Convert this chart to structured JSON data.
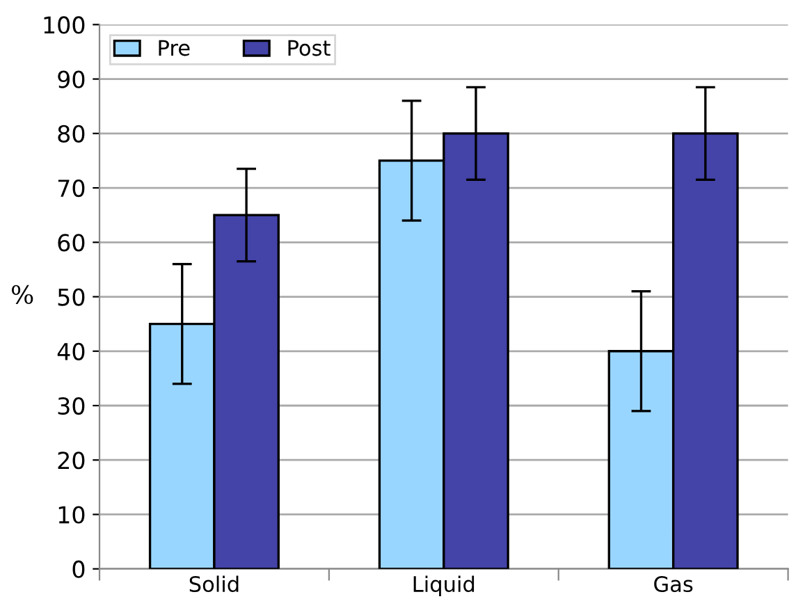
{
  "chart_data": {
    "type": "bar",
    "ylabel": "%",
    "categories": [
      "Solid",
      "Liquid",
      "Gas"
    ],
    "series": [
      {
        "name": "Pre",
        "color": "#99d6ff",
        "values": [
          45,
          75,
          40
        ],
        "errors": [
          11,
          11,
          11
        ]
      },
      {
        "name": "Post",
        "color": "#4343a8",
        "values": [
          65,
          80,
          80
        ],
        "errors": [
          8.5,
          8.5,
          8.5
        ]
      }
    ],
    "ylim": [
      0,
      100
    ],
    "yticks": [
      0,
      10,
      20,
      30,
      40,
      50,
      60,
      70,
      80,
      90,
      100
    ],
    "grid": "y",
    "legend": "top left"
  }
}
